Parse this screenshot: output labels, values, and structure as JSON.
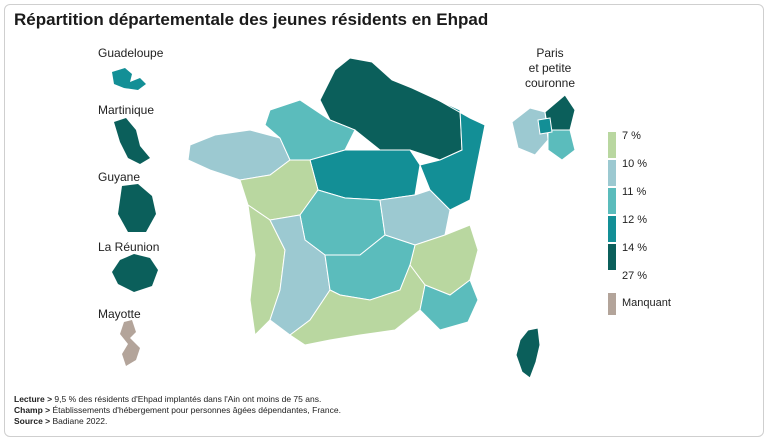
{
  "title": "Répartition départementale des jeunes résidents en Ehpad",
  "overseas": [
    {
      "name": "Guadeloupe"
    },
    {
      "name": "Martinique"
    },
    {
      "name": "Guyane"
    },
    {
      "name": "La Réunion"
    },
    {
      "name": "Mayotte"
    }
  ],
  "inset_paris": {
    "line1": "Paris",
    "line2": "et petite",
    "line3": "couronne"
  },
  "legend": {
    "ticks": [
      "7 %",
      "10 %",
      "11 %",
      "12 %",
      "14 %",
      "27 %"
    ],
    "colors": [
      "#b9d7a0",
      "#9cc9d1",
      "#5bbcbc",
      "#138f96",
      "#0b5f5b"
    ],
    "missing_label": "Manquant",
    "missing_color": "#b3a49a"
  },
  "notes": {
    "lecture_key": "Lecture >",
    "lecture_text": " 9,5 % des résidents d'Ehpad implantés dans l'Ain ont moins de 75 ans.",
    "champ_key": "Champ >",
    "champ_text": " Établissements d'hébergement pour personnes âgées dépendantes, France.",
    "source_key": "Source >",
    "source_text": " Badiane 2022."
  }
}
